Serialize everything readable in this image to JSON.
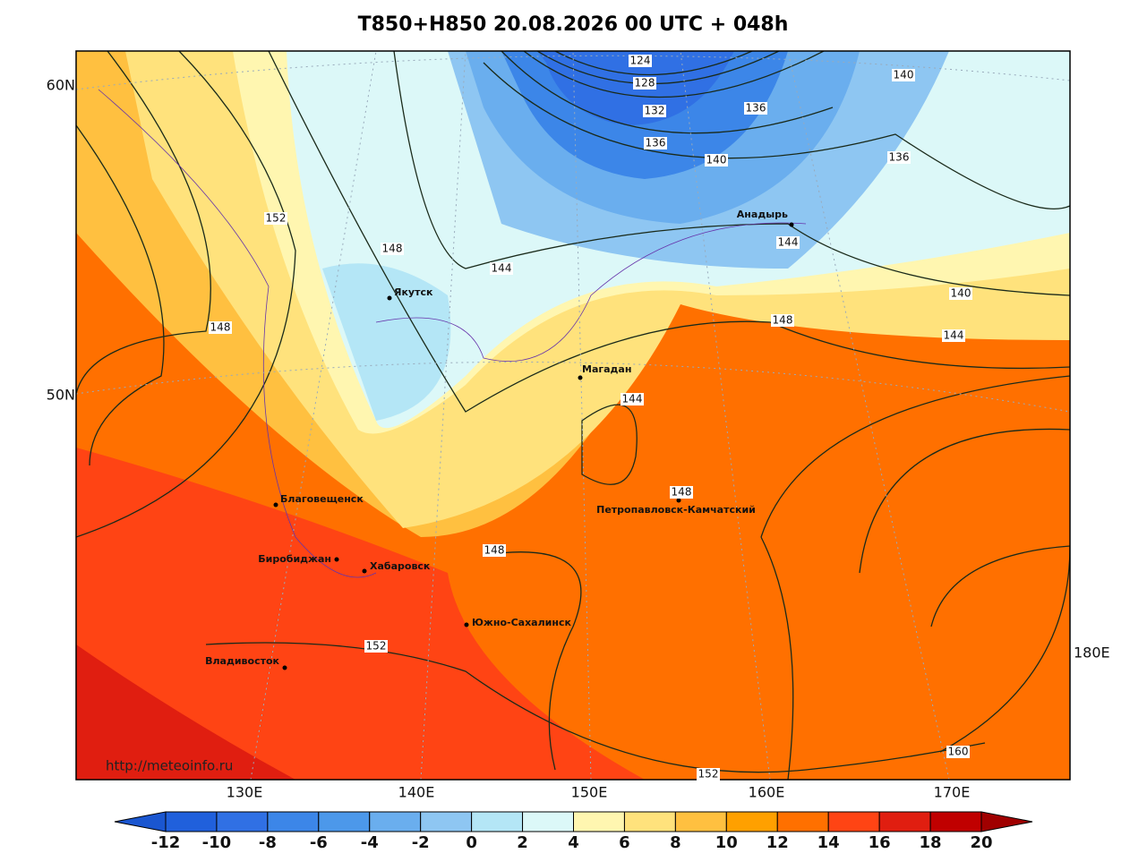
{
  "title": "T850+H850 20.08.2026 00 UTC + 048h",
  "lat_labels": [
    "60N",
    "50N"
  ],
  "lon_labels": [
    "130E",
    "140E",
    "150E",
    "160E",
    "170E",
    "180E"
  ],
  "cities": [
    "Якутск",
    "Магадан",
    "Анадырь",
    "Петропавловск-Камчатский",
    "Благовещенск",
    "Биробиджан",
    "Хабаровск",
    "Южно-Сахалинск",
    "Владивосток"
  ],
  "contour_labels": [
    124,
    128,
    132,
    136,
    136,
    140,
    140,
    136,
    152,
    148,
    144,
    144,
    140,
    144,
    148,
    148,
    144,
    148,
    148,
    152,
    152,
    160
  ],
  "credit": "http://meteoinfo.ru",
  "colorbar": {
    "ticks": [
      -12,
      -10,
      -8,
      -6,
      -4,
      -2,
      0,
      2,
      4,
      6,
      8,
      10,
      12,
      14,
      16,
      18,
      20
    ],
    "colors": [
      "#2060dc",
      "#3070e4",
      "#3c86e8",
      "#4c98ea",
      "#6aaeee",
      "#8ec6f2",
      "#b4e6f6",
      "#dcf8f8",
      "#fff6b0",
      "#ffe27c",
      "#ffc040",
      "#ffa000",
      "#ff7000",
      "#ff4414",
      "#e01e10",
      "#c00000"
    ],
    "under_color": "#1a56d0",
    "over_color": "#a00000"
  }
}
